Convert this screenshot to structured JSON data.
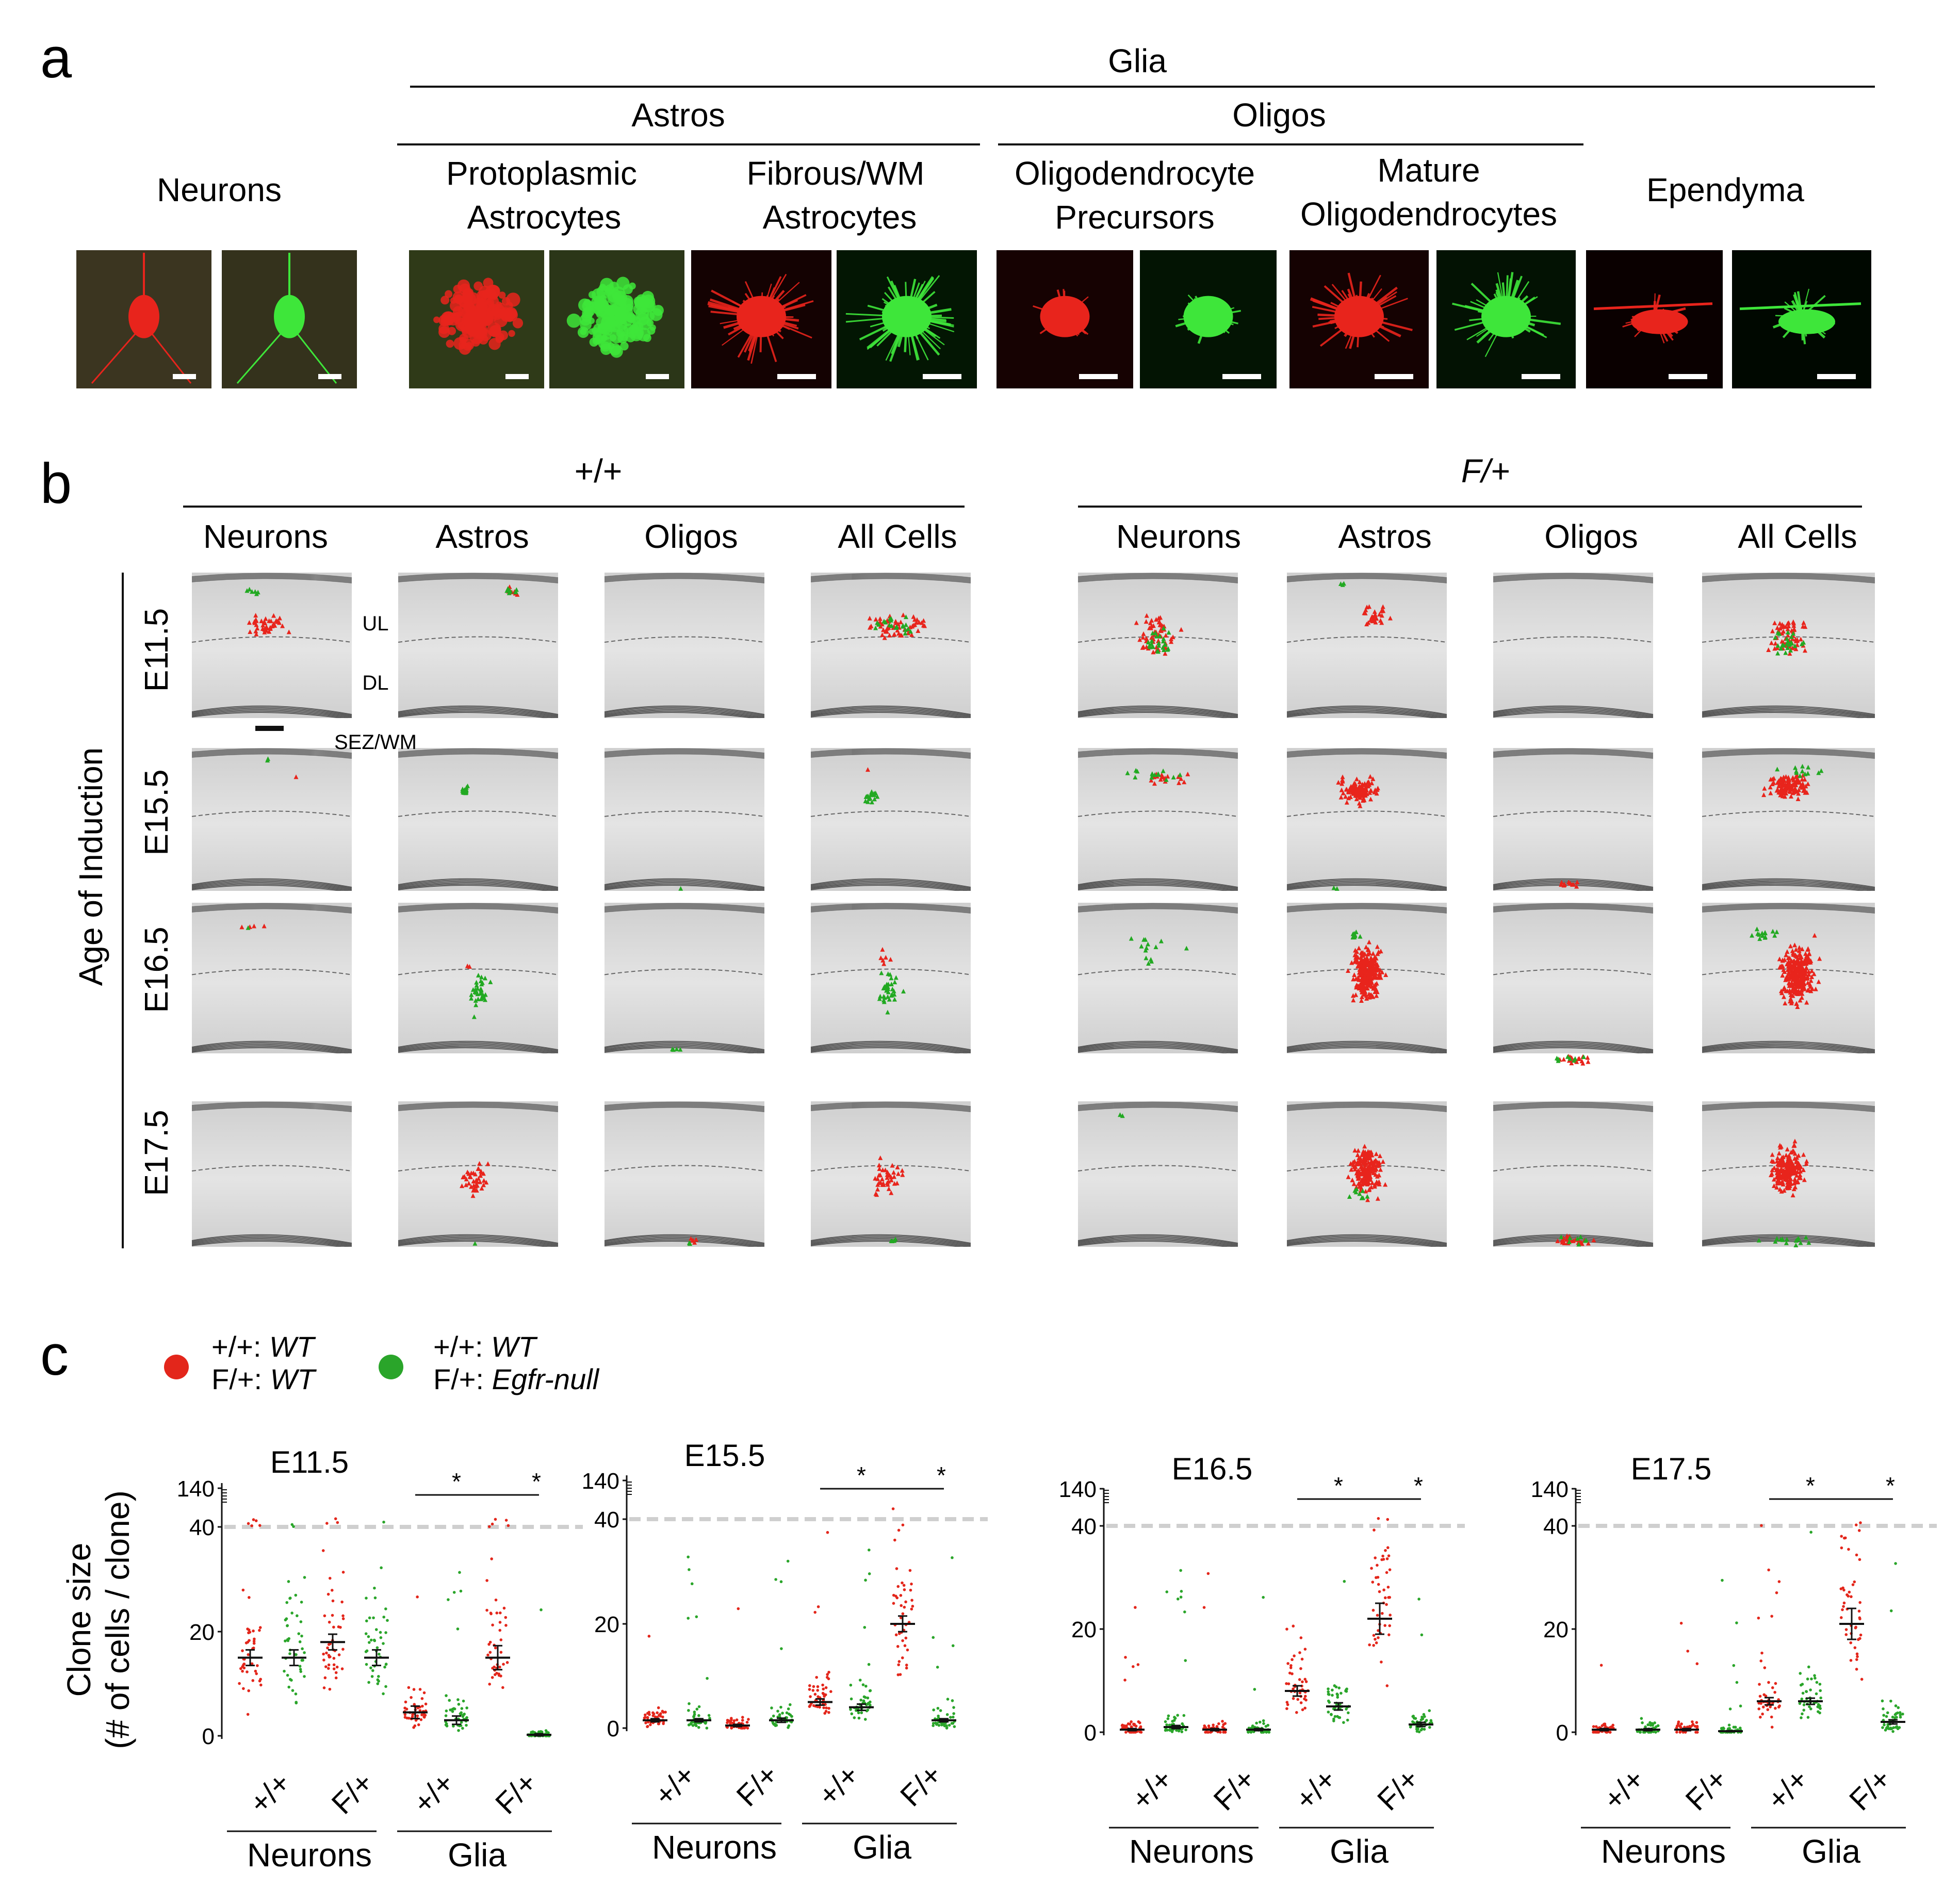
{
  "panel_a": {
    "label": "a",
    "glia_header": "Glia",
    "astros_header": "Astros",
    "oligos_header": "Oligos",
    "neurons_title": "Neurons",
    "proto_title": [
      "Protoplasmic",
      "Astrocytes"
    ],
    "fibrous_title": [
      "Fibrous/WM",
      "Astrocytes"
    ],
    "opc_title": [
      "Oligodendrocyte",
      "Precursors"
    ],
    "mature_title": [
      "Mature",
      "Oligodendrocytes"
    ],
    "ependyma_title": "Ependyma",
    "colors": {
      "red": "#e8241c",
      "green": "#3ee63a"
    }
  },
  "panel_b": {
    "label": "b",
    "left_header": "+/+",
    "right_header": "F/+",
    "column_titles": [
      "Neurons",
      "Astros",
      "Oligos",
      "All Cells"
    ],
    "row_titles": [
      "E11.5",
      "E15.5",
      "E16.5",
      "E17.5"
    ],
    "y_axis_title": "Age of Induction",
    "layer_labels": {
      "ul": "UL",
      "dl": "DL",
      "sez": "SEZ/WM"
    }
  },
  "panel_c": {
    "label": "c",
    "legend": [
      {
        "color": "#e3261b",
        "lines": [
          "+/+: ",
          "WT",
          "F/+: ",
          "WT"
        ]
      },
      {
        "color": "#2aa52a",
        "lines": [
          "+/+: ",
          "WT",
          "F/+: ",
          "Egfr-null"
        ]
      }
    ],
    "y_axis_title": [
      "Clone size",
      "(# of cells / clone)"
    ],
    "x_tick_labels": [
      "+/+",
      "F/+",
      "+/+",
      "F/+"
    ],
    "group_labels": [
      "Neurons",
      "Glia"
    ],
    "significance_marker": "*"
  },
  "chart_data": [
    {
      "type": "scatter",
      "title": "E11.5",
      "ylabel": "Clone size (# of cells / clone)",
      "y_ticks": [
        0,
        20,
        40,
        140
      ],
      "categories": [
        "Neurons +/+",
        "Neurons F/+",
        "Glia +/+",
        "Glia F/+"
      ],
      "series": [
        {
          "name": "+/+: WT",
          "color": "#e3261b",
          "means": [
            15,
            18,
            4.5,
            15
          ],
          "sem": [
            1.5,
            1.5,
            1.2,
            2.3
          ]
        },
        {
          "name": "F/+: Egfr-null",
          "color": "#2aa52a",
          "means": [
            15,
            15,
            3,
            0.2
          ],
          "sem": [
            1.5,
            1.5,
            0.8,
            0.2
          ]
        }
      ]
    },
    {
      "type": "scatter",
      "title": "E15.5",
      "ylabel": "Clone size (# of cells / clone)",
      "y_ticks": [
        0,
        20,
        40,
        140
      ],
      "categories": [
        "Neurons +/+",
        "Neurons F/+",
        "Glia +/+",
        "Glia F/+"
      ],
      "series": [
        {
          "name": "+/+: WT",
          "color": "#e3261b",
          "means": [
            1.5,
            0.5,
            5,
            20
          ],
          "sem": [
            0.3,
            0.2,
            0.6,
            1.5
          ]
        },
        {
          "name": "F/+: Egfr-null",
          "color": "#2aa52a",
          "means": [
            1.5,
            1.5,
            4,
            1.5
          ],
          "sem": [
            0.3,
            0.4,
            0.6,
            0.3
          ]
        }
      ]
    },
    {
      "type": "scatter",
      "title": "E16.5",
      "ylabel": "Clone size (# of cells / clone)",
      "y_ticks": [
        0,
        20,
        40,
        140
      ],
      "categories": [
        "Neurons +/+",
        "Neurons F/+",
        "Glia +/+",
        "Glia F/+"
      ],
      "series": [
        {
          "name": "+/+: WT",
          "color": "#e3261b",
          "means": [
            0.5,
            0.5,
            8,
            22
          ],
          "sem": [
            0.2,
            0.2,
            1,
            3
          ]
        },
        {
          "name": "F/+: Egfr-null",
          "color": "#2aa52a",
          "means": [
            1,
            0.5,
            5,
            1.5
          ],
          "sem": [
            0.3,
            0.2,
            0.7,
            0.4
          ]
        }
      ]
    },
    {
      "type": "scatter",
      "title": "E17.5",
      "ylabel": "Clone size (# of cells / clone)",
      "y_ticks": [
        0,
        20,
        40,
        140
      ],
      "categories": [
        "Neurons +/+",
        "Neurons F/+",
        "Glia +/+",
        "Glia F/+"
      ],
      "series": [
        {
          "name": "+/+: WT",
          "color": "#e3261b",
          "means": [
            0.5,
            0.5,
            6,
            21
          ],
          "sem": [
            0.2,
            0.2,
            0.7,
            3
          ]
        },
        {
          "name": "F/+: Egfr-null",
          "color": "#2aa52a",
          "means": [
            0.5,
            0.2,
            6,
            2
          ],
          "sem": [
            0.2,
            0.1,
            0.6,
            0.4
          ]
        }
      ]
    }
  ]
}
